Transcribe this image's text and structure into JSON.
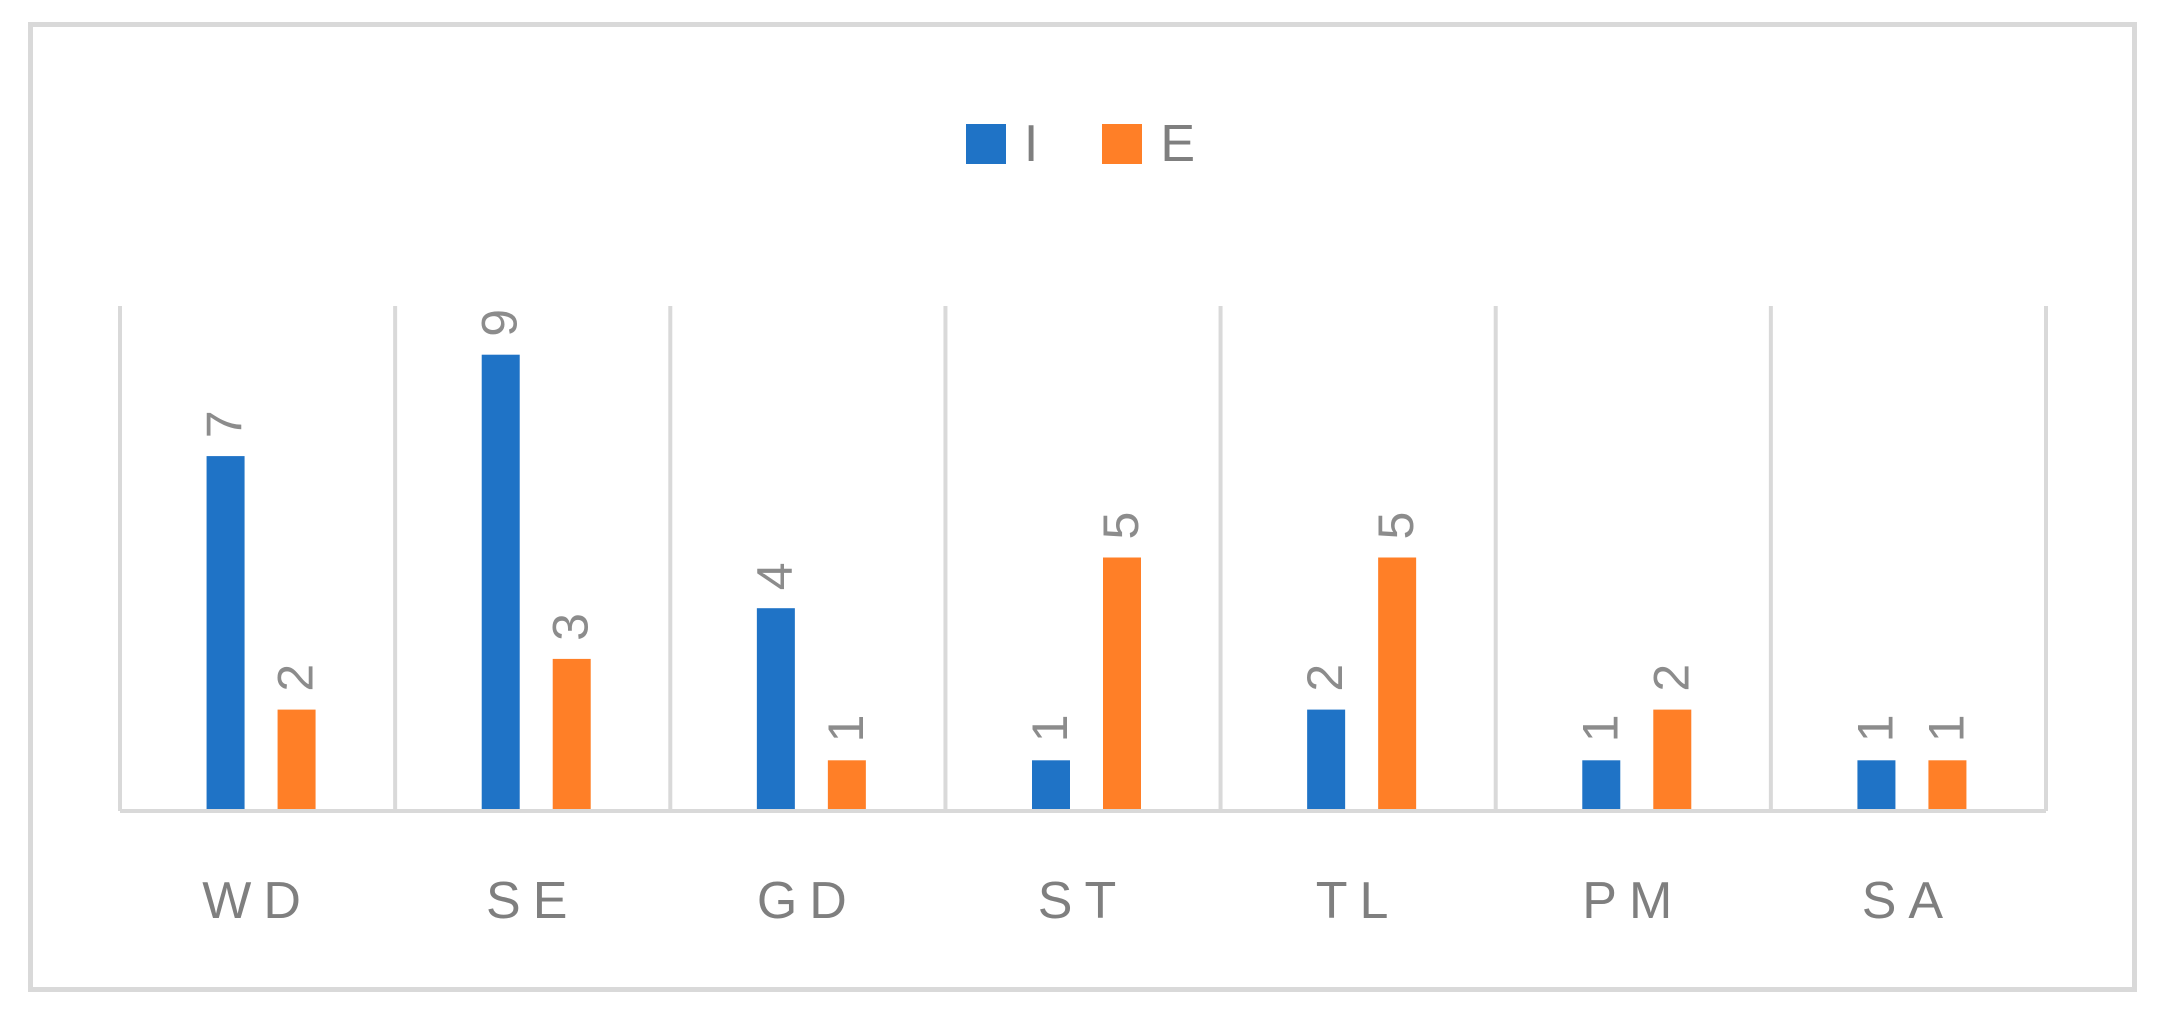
{
  "chart_data": {
    "type": "bar",
    "categories": [
      "WD",
      "SE",
      "GD",
      "ST",
      "TL",
      "PM",
      "SA"
    ],
    "series": [
      {
        "name": "I",
        "color": "#1f73c6",
        "values": [
          7,
          9,
          4,
          1,
          2,
          1,
          1
        ]
      },
      {
        "name": "E",
        "color": "#ff7f27",
        "values": [
          2,
          3,
          1,
          5,
          5,
          2,
          1
        ]
      }
    ],
    "ylim": [
      0,
      10
    ],
    "grid": "vertical category separators",
    "legend_position": "top-center",
    "data_labels": "rotated above bars"
  }
}
